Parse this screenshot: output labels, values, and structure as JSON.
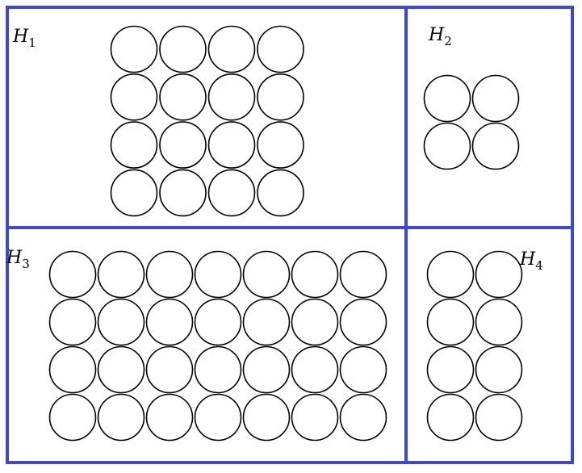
{
  "diagram": {
    "frame_color": "#3f48c8",
    "regions": [
      {
        "id": "H1",
        "label_main": "H",
        "label_sub": "1",
        "rows": 4,
        "cols": 4,
        "circle_count": 16
      },
      {
        "id": "H2",
        "label_main": "H",
        "label_sub": "2",
        "rows": 2,
        "cols": 2,
        "circle_count": 4
      },
      {
        "id": "H3",
        "label_main": "H",
        "label_sub": "3",
        "rows": 4,
        "cols": 7,
        "circle_count": 28
      },
      {
        "id": "H4",
        "label_main": "H",
        "label_sub": "4",
        "rows": 4,
        "cols": 2,
        "circle_count": 8
      }
    ]
  }
}
